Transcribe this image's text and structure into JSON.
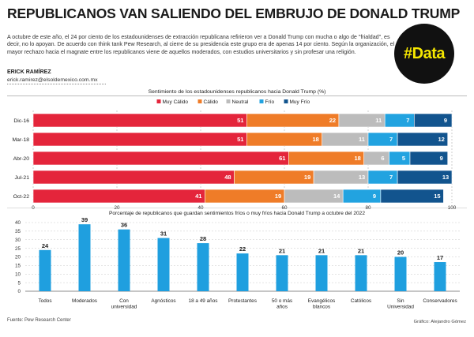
{
  "header": {
    "title": "REPUBLICANOS VAN SALIENDO DEL EMBRUJO DE DONALD TRUMP",
    "intro": "A octubre de este año, el 24 por ciento de los estadounidenses de extracción republicana refirieron ver a Donald Trump con mucha o algo de \"frialdad\", es decir, no lo apoyan. De acuerdo con think tank Pew Research, al cierre de su presidencia este grupo era de apenas 14 por ciento. Según la organización, el mayor rechazo hacia el magnate entre los republicanos viene de aquellos moderados, con estudios universitarios y sin profesar una religión.",
    "badge": "#Data",
    "author": "ERICK RAMÍREZ",
    "email": "erick.ramirez@elsoldemexico.com.mx"
  },
  "footer": {
    "source": "Fuente: Pew Research Center",
    "credit": "Gráfico: Alejandro Gómez"
  },
  "colors": {
    "muy_calido": "#e4253b",
    "calido": "#ef7c28",
    "neutral": "#bcbcbc",
    "frio": "#22a3e0",
    "muy_frio": "#12548e",
    "column": "#1f9fdf"
  },
  "chart_data": [
    {
      "type": "bar",
      "orientation": "horizontal",
      "stacked": true,
      "title": "Sentimiento de los estadounidenses republicanos hacia Donald Trump (%)",
      "categories": [
        "Dic-16",
        "Mar-18",
        "Abr-20",
        "Jul-21",
        "Oct-22"
      ],
      "series": [
        {
          "name": "Muy Cálido",
          "values": [
            51,
            51,
            61,
            48,
            41
          ]
        },
        {
          "name": "Cálido",
          "values": [
            22,
            18,
            18,
            19,
            19
          ]
        },
        {
          "name": "Neutral",
          "values": [
            11,
            11,
            6,
            13,
            14
          ]
        },
        {
          "name": "Frío",
          "values": [
            7,
            7,
            5,
            7,
            9
          ]
        },
        {
          "name": "Muy Frío",
          "values": [
            9,
            12,
            9,
            13,
            15
          ]
        }
      ],
      "xlim": [
        0,
        100
      ],
      "xticks": [
        0,
        20,
        40,
        60,
        80,
        100
      ],
      "legend": "top-center"
    },
    {
      "type": "bar",
      "title": "Porcentaje de republicanos que guardan sentimientos fríos o muy fríos hacia Donald Trump a octubre del 2022",
      "categories": [
        "Todos",
        "Moderados",
        "Con universidad",
        "Agnósticos",
        "18 a 49 años",
        "Protestantes",
        "50 o más años",
        "Evangélicos blancos",
        "Católicos",
        "Sin Universidad",
        "Conservadores"
      ],
      "values": [
        24,
        39,
        36,
        31,
        28,
        22,
        21,
        21,
        21,
        20,
        17
      ],
      "ylim": [
        0,
        40
      ],
      "yticks": [
        0,
        5,
        10,
        15,
        20,
        25,
        30,
        35,
        40
      ],
      "grid": true
    }
  ]
}
